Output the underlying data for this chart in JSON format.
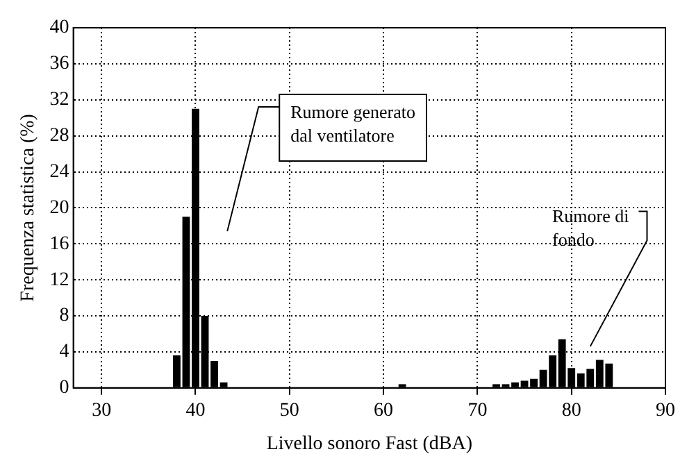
{
  "chart_data": {
    "type": "histogram",
    "xlabel": "Livello sonoro Fast (dBA)",
    "ylabel": "Frequenza statistica (%)",
    "bins": [
      37.5,
      38.5,
      39.5,
      40.5,
      41.5,
      42.5,
      43.5,
      44.5,
      45.5,
      46.5,
      47.5,
      48.5,
      49.5,
      50.5,
      51.5,
      52.5,
      53.5,
      54.5,
      55.5,
      56.5,
      57.5,
      58.5,
      59.5,
      60.5,
      61.5,
      62.5,
      63.5,
      64.5,
      65.5,
      66.5,
      67.5,
      68.5,
      69.5,
      70.5,
      71.5,
      72.5,
      73.5,
      74.5,
      75.5,
      76.5,
      77.5,
      78.5,
      79.5,
      80.5,
      81.5,
      82.5,
      83.5,
      84.5
    ],
    "values": [
      3.6,
      19,
      31,
      8,
      3,
      0.6,
      0,
      0,
      0,
      0,
      0,
      0,
      0,
      0,
      0,
      0,
      0,
      0,
      0,
      0,
      0,
      0,
      0,
      0,
      0.4,
      0,
      0,
      0,
      0,
      0,
      0,
      0,
      0,
      0,
      0.4,
      0.4,
      0.6,
      0.8,
      1,
      2,
      3.6,
      5.4,
      2.2,
      1.6,
      2.1,
      3.1,
      2.7
    ],
    "color": "#000000",
    "xlim": [
      27,
      90
    ],
    "xticks": [
      30,
      40,
      50,
      60,
      70,
      80,
      90
    ],
    "ylim": [
      0,
      40
    ],
    "yticks": [
      0,
      4,
      8,
      12,
      16,
      20,
      24,
      28,
      32,
      36,
      40
    ],
    "grid": true,
    "annotations": [
      "Rumore generato dal ventilatore",
      "Rumore di fondo"
    ]
  }
}
